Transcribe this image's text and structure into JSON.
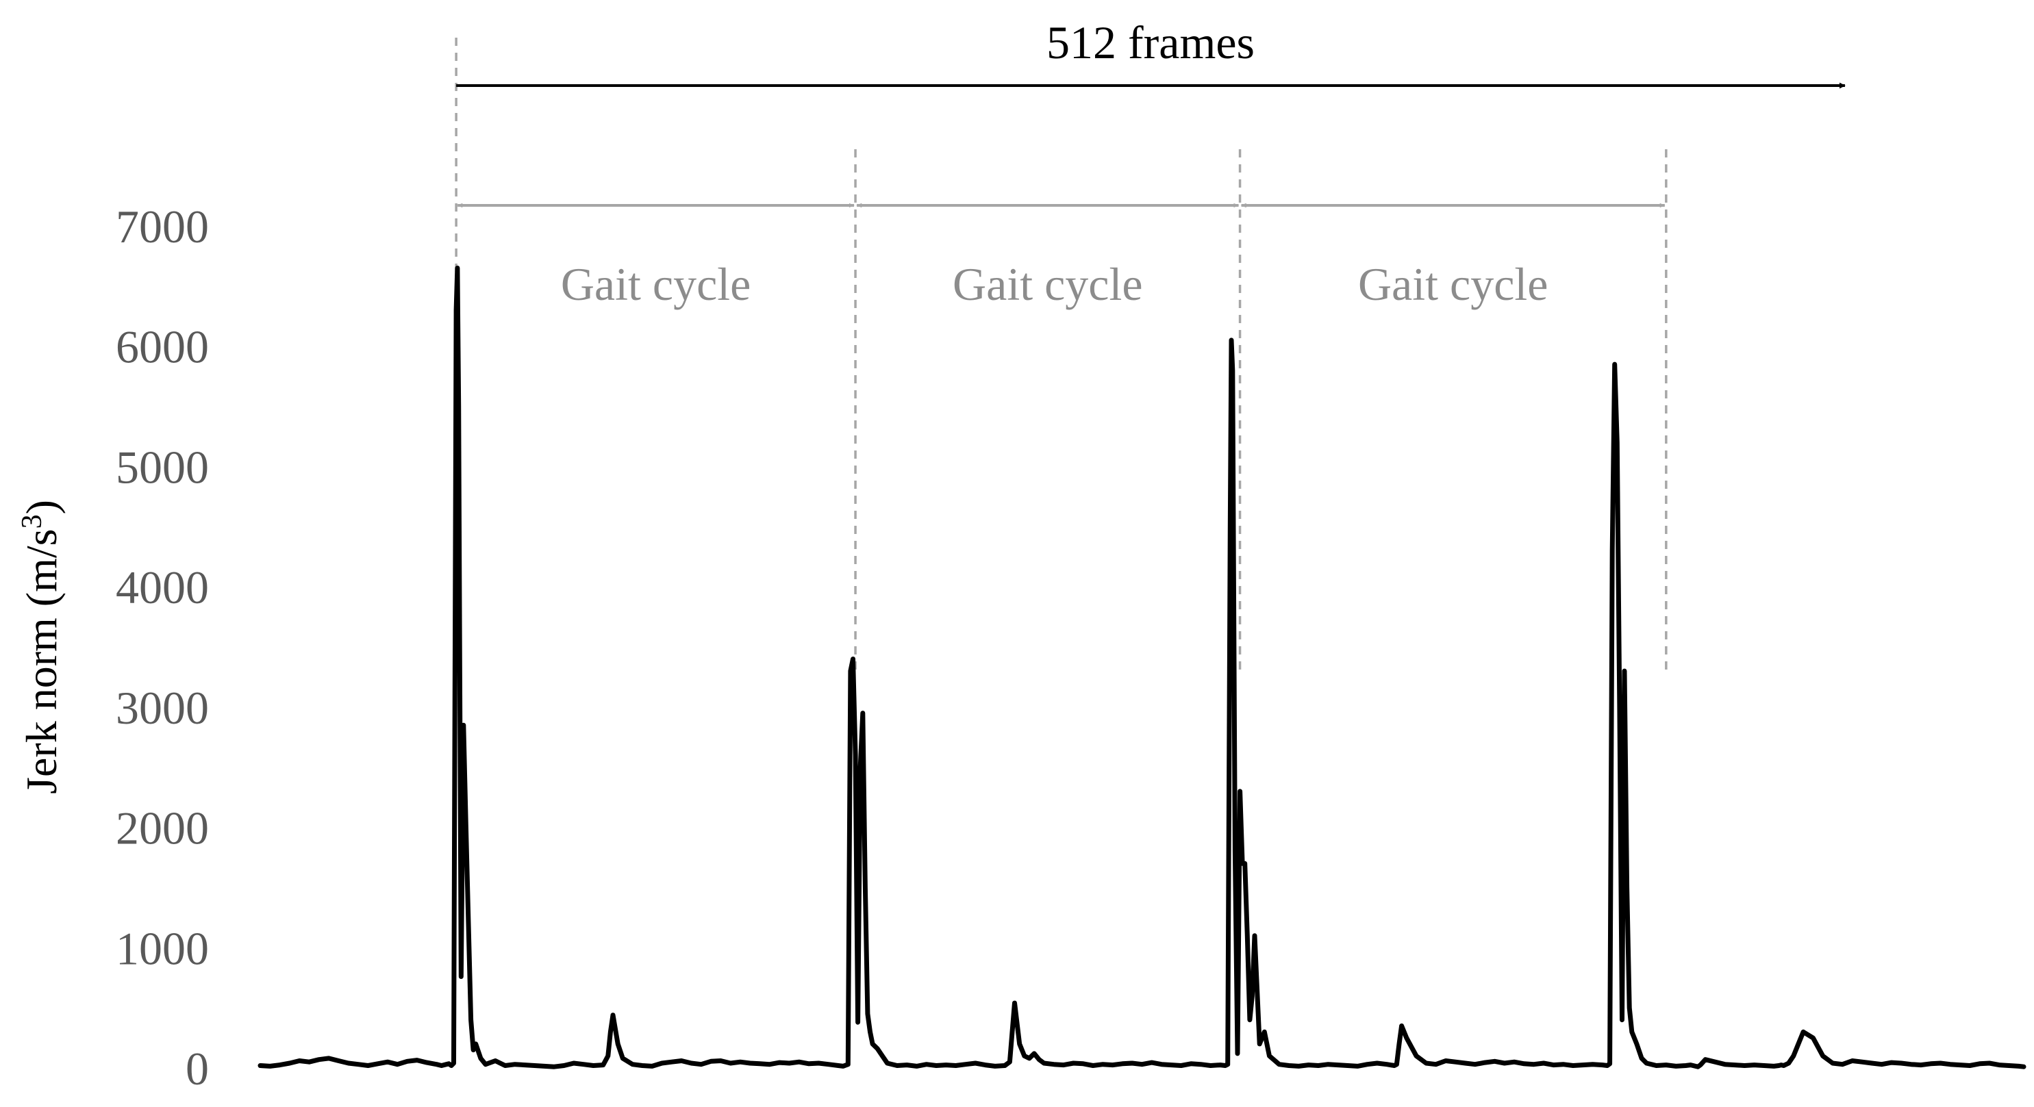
{
  "chart_data": {
    "type": "line",
    "ylabel": "Jerk norm (m/s³)",
    "ylabel_main": "Jerk norm (m/s",
    "ylabel_sup": "3",
    "ylabel_close": ")",
    "ylim": [
      0,
      7000
    ],
    "xlim": [
      0,
      720
    ],
    "y_ticks": [
      0,
      1000,
      2000,
      3000,
      4000,
      5000,
      6000,
      7000
    ],
    "y_tick_labels": [
      "0",
      "1000",
      "2000",
      "3000",
      "4000",
      "5000",
      "6000",
      "7000"
    ],
    "grid": false,
    "colors": {
      "series": "#000000",
      "annotation": "#a6a6a6",
      "tick_text": "#595959",
      "cycle_text": "#8c8c8c"
    },
    "series": [
      {
        "x": [
          0,
          4,
          8,
          12,
          16,
          20,
          24,
          28,
          32,
          36,
          40,
          44,
          48,
          52,
          56,
          60,
          64,
          68,
          72,
          74,
          76,
          77,
          78,
          79,
          80,
          80.5,
          81,
          82,
          83,
          84,
          85,
          86,
          87,
          88,
          90,
          92,
          96,
          100,
          104,
          108,
          112,
          116,
          120,
          124,
          128,
          132,
          136,
          140,
          142,
          143,
          144,
          146,
          148,
          152,
          156,
          160,
          164,
          168,
          172,
          176,
          180,
          184,
          188,
          192,
          196,
          200,
          204,
          208,
          212,
          216,
          220,
          224,
          228,
          232,
          236,
          238,
          240,
          241,
          242,
          243,
          244,
          245,
          246,
          247,
          248,
          249,
          250,
          252,
          254,
          256,
          260,
          264,
          268,
          272,
          276,
          280,
          284,
          288,
          292,
          296,
          300,
          304,
          306,
          307,
          308,
          310,
          312,
          314,
          316,
          318,
          320,
          324,
          328,
          332,
          336,
          340,
          344,
          348,
          352,
          356,
          360,
          364,
          368,
          372,
          376,
          380,
          384,
          388,
          392,
          394,
          395,
          396,
          396.5,
          397,
          398,
          399,
          400,
          401,
          402,
          403,
          404,
          405,
          406,
          408,
          410,
          412,
          416,
          420,
          424,
          428,
          432,
          436,
          440,
          444,
          448,
          452,
          456,
          460,
          463,
          464,
          465,
          466,
          468,
          472,
          476,
          480,
          484,
          488,
          492,
          496,
          500,
          504,
          508,
          512,
          516,
          520,
          524,
          528,
          532,
          536,
          540,
          544,
          548,
          550,
          551,
          552,
          553,
          554,
          555,
          556,
          557,
          558,
          559,
          560,
          562,
          564,
          566,
          570,
          574,
          578,
          582,
          584,
          585,
          586,
          587,
          588,
          590,
          594,
          598,
          602,
          606,
          610,
          614,
          618,
          620,
          621,
          622,
          624,
          626,
          630,
          634,
          638,
          642,
          646,
          650,
          654,
          658,
          662,
          666,
          670,
          674,
          678,
          682,
          686,
          690,
          694,
          698,
          702,
          706,
          710,
          714,
          718,
          720
        ],
        "y": [
          20,
          15,
          25,
          40,
          60,
          50,
          70,
          80,
          60,
          40,
          30,
          20,
          35,
          50,
          30,
          55,
          65,
          45,
          30,
          20,
          30,
          35,
          20,
          40,
          6300,
          6650,
          5500,
          760,
          2850,
          2000,
          1200,
          400,
          150,
          200,
          80,
          30,
          60,
          20,
          30,
          25,
          20,
          15,
          10,
          20,
          40,
          30,
          20,
          25,
          100,
          300,
          440,
          200,
          80,
          30,
          20,
          15,
          40,
          50,
          60,
          40,
          30,
          55,
          60,
          40,
          50,
          40,
          35,
          30,
          45,
          40,
          50,
          35,
          40,
          30,
          20,
          15,
          30,
          3300,
          3400,
          2600,
          380,
          2500,
          2950,
          1500,
          450,
          300,
          200,
          160,
          100,
          40,
          20,
          25,
          15,
          30,
          20,
          25,
          20,
          30,
          40,
          25,
          15,
          20,
          50,
          300,
          540,
          200,
          100,
          80,
          120,
          70,
          40,
          30,
          25,
          40,
          35,
          20,
          30,
          25,
          35,
          40,
          30,
          45,
          30,
          25,
          20,
          35,
          30,
          20,
          25,
          20,
          30,
          4500,
          6050,
          5800,
          1800,
          120,
          2300,
          1700,
          1700,
          1100,
          400,
          600,
          1100,
          200,
          300,
          100,
          30,
          20,
          15,
          25,
          20,
          30,
          25,
          20,
          15,
          30,
          40,
          30,
          20,
          30,
          200,
          350,
          250,
          100,
          40,
          30,
          60,
          50,
          40,
          30,
          45,
          55,
          40,
          50,
          35,
          30,
          40,
          25,
          30,
          20,
          25,
          30,
          25,
          20,
          35,
          4300,
          5850,
          5200,
          3000,
          400,
          3300,
          1500,
          500,
          300,
          200,
          80,
          40,
          20,
          25,
          15,
          20,
          25,
          20,
          15,
          10,
          25,
          70,
          50,
          30,
          25,
          20,
          25,
          20,
          15,
          20,
          25,
          20,
          40,
          100,
          300,
          250,
          100,
          40,
          30,
          60,
          50,
          40,
          30,
          45,
          40,
          30,
          25,
          35,
          40,
          30,
          25,
          20,
          35,
          40,
          25,
          20,
          15,
          10
        ]
      }
    ],
    "cycle_boundaries": [
      80,
      243,
      400,
      574
    ],
    "frames_arrow": {
      "start": 80,
      "end": 647,
      "label": "512 frames"
    },
    "cycle_labels": [
      "Gait cycle",
      "Gait cycle",
      "Gait cycle"
    ]
  }
}
